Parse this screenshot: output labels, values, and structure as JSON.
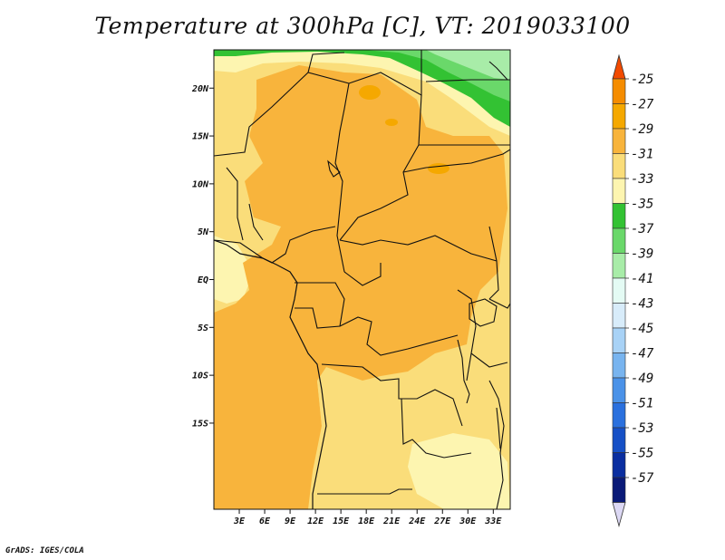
{
  "title": "Temperature at 300hPa [C], VT: 2019033100",
  "credit": "GrADS: IGES/COLA",
  "map": {
    "lon_range_E": [
      0,
      35
    ],
    "lat_range": [
      -24,
      24
    ],
    "lat_ticks": [
      {
        "value": 20,
        "label": "20N"
      },
      {
        "value": 15,
        "label": "15N"
      },
      {
        "value": 10,
        "label": "10N"
      },
      {
        "value": 5,
        "label": "5N"
      },
      {
        "value": 0,
        "label": "EQ"
      },
      {
        "value": -5,
        "label": "5S"
      },
      {
        "value": -10,
        "label": "10S"
      },
      {
        "value": -15,
        "label": "15S"
      }
    ],
    "lon_ticks": [
      {
        "value": 3,
        "label": "3E"
      },
      {
        "value": 6,
        "label": "6E"
      },
      {
        "value": 9,
        "label": "9E"
      },
      {
        "value": 12,
        "label": "12E"
      },
      {
        "value": 15,
        "label": "15E"
      },
      {
        "value": 18,
        "label": "18E"
      },
      {
        "value": 21,
        "label": "21E"
      },
      {
        "value": 24,
        "label": "24E"
      },
      {
        "value": 27,
        "label": "27E"
      },
      {
        "value": 30,
        "label": "30E"
      },
      {
        "value": 33,
        "label": "33E"
      }
    ],
    "shading_colors": {
      "-27_to_-29": "#f5a800",
      "-29_to_-31": "#f8b43c",
      "-31_to_-33": "#fadd7a",
      "-33_to_-35": "#fdf5b0",
      "-35_to_-37": "#33c233",
      "-37_to_-39": "#6ad86a",
      "-39_to_-41": "#a8eca8"
    }
  },
  "colorbar": {
    "labels": [
      "-25",
      "-27",
      "-29",
      "-31",
      "-33",
      "-35",
      "-37",
      "-39",
      "-41",
      "-43",
      "-45",
      "-47",
      "-49",
      "-51",
      "-53",
      "-55",
      "-57"
    ],
    "colors": [
      "#f24a00",
      "#f58c00",
      "#f5a800",
      "#f8b43c",
      "#fadd7a",
      "#fdf5b0",
      "#33c233",
      "#6ad86a",
      "#a8eca8",
      "#e4fbf4",
      "#d8ecfa",
      "#a8d2f6",
      "#78b4ef",
      "#4a92e8",
      "#2a70de",
      "#1650c6",
      "#0a2ea0",
      "#0a1a78"
    ],
    "lower_triangle_color": "#dcd8f4"
  }
}
